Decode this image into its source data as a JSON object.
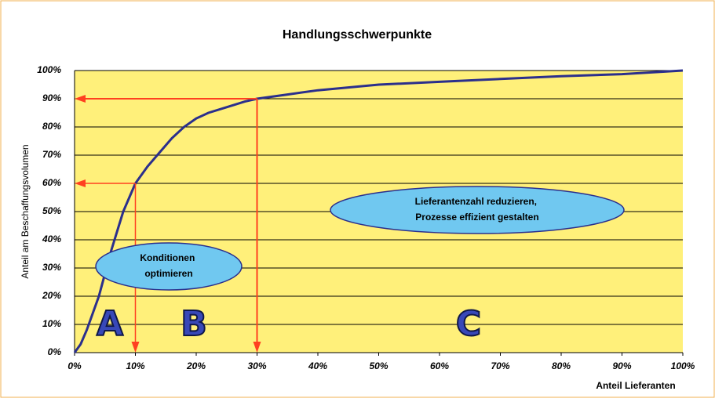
{
  "chart_data": {
    "type": "line",
    "title": "Handlungsschwerpunkte",
    "ylabel": "Anteil am Beschaffungsvolumen",
    "xlabel": "Anteil Lieferanten",
    "x": [
      0,
      1,
      2,
      3,
      4,
      5,
      6,
      7,
      8,
      9,
      10,
      12,
      14,
      16,
      18,
      20,
      22,
      25,
      28,
      30,
      35,
      40,
      45,
      50,
      60,
      70,
      80,
      90,
      100
    ],
    "values": [
      0,
      3,
      8,
      14,
      20,
      28,
      36,
      43,
      50,
      55,
      60,
      66,
      71,
      76,
      80,
      83,
      85,
      87,
      89,
      90,
      91.5,
      93,
      94,
      95,
      96,
      97,
      98,
      98.7,
      100
    ],
    "color": "#2b2f8c",
    "xlim": [
      0,
      100
    ],
    "ylim": [
      0,
      100
    ],
    "xticks": [
      {
        "value": 0,
        "label": "0%"
      },
      {
        "value": 10,
        "label": "10%"
      },
      {
        "value": 20,
        "label": "20%"
      },
      {
        "value": 30,
        "label": "30%"
      },
      {
        "value": 40,
        "label": "40%"
      },
      {
        "value": 50,
        "label": "50%"
      },
      {
        "value": 60,
        "label": "60%"
      },
      {
        "value": 70,
        "label": "70%"
      },
      {
        "value": 80,
        "label": "80%"
      },
      {
        "value": 90,
        "label": "90%"
      },
      {
        "value": 100,
        "label": "100%"
      }
    ],
    "yticks": [
      {
        "value": 0,
        "label": "0%"
      },
      {
        "value": 10,
        "label": "10%"
      },
      {
        "value": 20,
        "label": "20%"
      },
      {
        "value": 30,
        "label": "30%"
      },
      {
        "value": 40,
        "label": "40%"
      },
      {
        "value": 50,
        "label": "50%"
      },
      {
        "value": 60,
        "label": "60%"
      },
      {
        "value": 70,
        "label": "70%"
      },
      {
        "value": 80,
        "label": "80%"
      },
      {
        "value": 90,
        "label": "90%"
      },
      {
        "value": 100,
        "label": "100%"
      }
    ],
    "grid": true,
    "markers": [
      {
        "x": 10,
        "y": 60
      },
      {
        "x": 30,
        "y": 90
      }
    ],
    "annotations": [
      {
        "lines": [
          "Konditionen",
          "optimieren"
        ]
      },
      {
        "lines": [
          "Lieferantenzahl reduzieren,",
          "Prozesse effizient gestalten"
        ]
      }
    ],
    "zones": [
      "A",
      "B",
      "C"
    ]
  }
}
